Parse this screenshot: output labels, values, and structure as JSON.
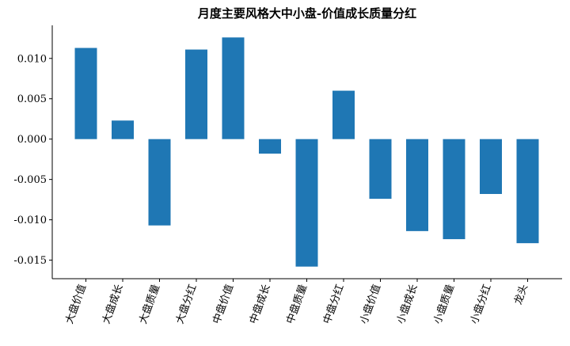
{
  "chart_data": {
    "type": "bar",
    "title": "月度主要风格大中小盘-价值成长质量分红",
    "xlabel": "",
    "ylabel": "",
    "categories": [
      "大盘价值",
      "大盘成长",
      "大盘质量",
      "大盘分红",
      "中盘价值",
      "中盘成长",
      "中盘质量",
      "中盘分红",
      "小盘价值",
      "小盘成长",
      "小盘质量",
      "小盘分红",
      "龙头"
    ],
    "values": [
      0.0113,
      0.0023,
      -0.0107,
      0.0111,
      0.0126,
      -0.0018,
      -0.0158,
      0.006,
      -0.0074,
      -0.0114,
      -0.0124,
      -0.0068,
      -0.0129
    ],
    "ylim": [
      -0.0173,
      0.0141
    ],
    "yticks": [
      0.01,
      0.005,
      0.0,
      -0.005,
      -0.01,
      -0.015
    ],
    "ytick_labels": [
      "0.010",
      "0.005",
      "0.000",
      "-0.005",
      "-0.010",
      "-0.015"
    ],
    "bar_color": "#1f77b4",
    "grid": false,
    "legend": "none"
  }
}
